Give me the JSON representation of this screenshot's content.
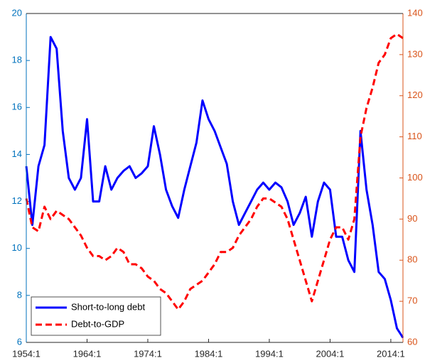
{
  "chart_data": {
    "type": "line",
    "x": [
      1954,
      1955,
      1956,
      1957,
      1958,
      1959,
      1960,
      1961,
      1962,
      1963,
      1964,
      1965,
      1966,
      1967,
      1968,
      1969,
      1970,
      1971,
      1972,
      1973,
      1974,
      1975,
      1976,
      1977,
      1978,
      1979,
      1980,
      1981,
      1982,
      1983,
      1984,
      1985,
      1986,
      1987,
      1988,
      1989,
      1990,
      1991,
      1992,
      1993,
      1994,
      1995,
      1996,
      1997,
      1998,
      1999,
      2000,
      2001,
      2002,
      2003,
      2004,
      2005,
      2006,
      2007,
      2008,
      2009,
      2010,
      2011,
      2012,
      2013,
      2014,
      2015,
      2016
    ],
    "series": [
      {
        "name": "Short-to-long debt",
        "color": "#0000ff",
        "style": "solid",
        "values": [
          13.5,
          11,
          13.5,
          14.4,
          19,
          18.5,
          15,
          13,
          12.5,
          13,
          15.5,
          12,
          12,
          13.5,
          12.5,
          13,
          13.3,
          13.5,
          13,
          13.2,
          13.5,
          15.2,
          14,
          12.5,
          11.8,
          11.3,
          12.5,
          13.5,
          14.5,
          16.3,
          15.5,
          15,
          14.3,
          13.6,
          12,
          11,
          11.5,
          12,
          12.5,
          12.8,
          12.5,
          12.8,
          12.6,
          12,
          11,
          11.5,
          12.2,
          10.5,
          12,
          12.8,
          12.5,
          10.5,
          10.5,
          9.5,
          9,
          15,
          12.5,
          11,
          9,
          8.7,
          7.8,
          6.6,
          6.2
        ]
      },
      {
        "name": "Debt-to-GDP",
        "color": "#ff0000",
        "style": "dashed",
        "axis": "y2",
        "values": [
          95,
          88,
          87,
          93,
          90,
          92,
          91,
          90,
          88,
          86,
          83,
          81,
          81,
          80,
          81,
          83,
          82,
          79,
          79,
          78,
          76,
          75,
          73,
          72,
          70,
          68,
          70,
          73,
          74,
          75,
          77,
          79,
          82,
          82,
          83,
          86,
          88,
          90,
          93,
          95,
          95,
          94,
          93,
          90,
          85,
          80,
          75,
          70,
          75,
          80,
          85,
          88,
          88,
          85,
          90,
          110,
          117,
          122,
          128,
          130,
          134,
          135,
          134
        ]
      }
    ],
    "xlim": [
      1954,
      2016
    ],
    "xticks": [
      {
        "value": 1954,
        "label": "1954:1"
      },
      {
        "value": 1964,
        "label": "1964:1"
      },
      {
        "value": 1974,
        "label": "1974:1"
      },
      {
        "value": 1984,
        "label": "1984:1"
      },
      {
        "value": 1994,
        "label": "1994:1"
      },
      {
        "value": 2004,
        "label": "2004:1"
      },
      {
        "value": 2014,
        "label": "2014:1"
      }
    ],
    "ylim": [
      6,
      20
    ],
    "yticks": [
      6,
      8,
      10,
      12,
      14,
      16,
      18,
      20
    ],
    "ycolor": "#0072bd",
    "y2lim": [
      60,
      140
    ],
    "y2ticks": [
      60,
      70,
      80,
      90,
      100,
      110,
      120,
      130,
      140
    ],
    "y2color": "#d95319",
    "legend": "lower-left"
  }
}
